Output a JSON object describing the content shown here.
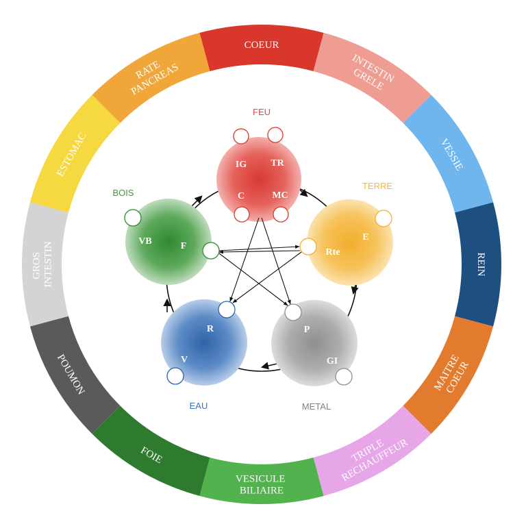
{
  "ring": {
    "segments": [
      {
        "lines": [
          "COEUR"
        ],
        "color": "#d9372b"
      },
      {
        "lines": [
          "INTESTIN",
          "GRELE"
        ],
        "color": "#ef9c92"
      },
      {
        "lines": [
          "VESSIE"
        ],
        "color": "#6fb6ef"
      },
      {
        "lines": [
          "REIN"
        ],
        "color": "#1d4f80"
      },
      {
        "lines": [
          "MAITRE",
          "COEUR"
        ],
        "color": "#e37b2e"
      },
      {
        "lines": [
          "TRIPLE",
          "RECHAUFFEUR"
        ],
        "color": "#e7a6e7"
      },
      {
        "lines": [
          "VESICULE",
          "BILIAIRE"
        ],
        "color": "#52b24d"
      },
      {
        "lines": [
          "FOIE"
        ],
        "color": "#2e7b2f"
      },
      {
        "lines": [
          "POUMON"
        ],
        "color": "#5a5a5a"
      },
      {
        "lines": [
          "GROS",
          "INTESTIN"
        ],
        "color": "#d4d4d4"
      },
      {
        "lines": [
          "ESTOMAC"
        ],
        "color": "#f6d840"
      },
      {
        "lines": [
          "RATE",
          "PANCREAS"
        ],
        "color": "#f1a63a"
      }
    ]
  },
  "elements": [
    {
      "id": "feu",
      "name": "FEU",
      "color": "#e24b45",
      "organs": [
        "IG",
        "TR",
        "C",
        "MC"
      ]
    },
    {
      "id": "terre",
      "name": "TERRE",
      "color": "#f3b73d",
      "organs": [
        "E",
        "Rte"
      ]
    },
    {
      "id": "metal",
      "name": "METAL",
      "color": "#9e9e9e",
      "organs": [
        "P",
        "GI"
      ]
    },
    {
      "id": "eau",
      "name": "EAU",
      "color": "#3f73b4",
      "organs": [
        "R",
        "V"
      ]
    },
    {
      "id": "bois",
      "name": "BOIS",
      "color": "#3f9b3c",
      "organs": [
        "VB",
        "F"
      ]
    }
  ]
}
